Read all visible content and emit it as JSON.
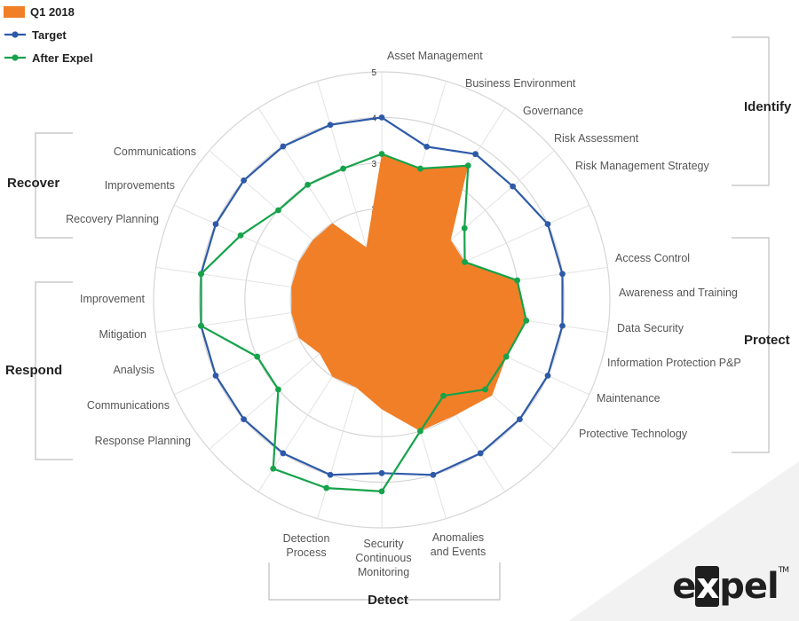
{
  "chart_data": {
    "type": "radar",
    "title": "",
    "rmax": 5,
    "radial_ticks": [
      "0",
      "1",
      "2",
      "3",
      "4",
      "5"
    ],
    "categories": [
      "Asset Management",
      "Business Environment",
      "Governance",
      "Risk Assessment",
      "Risk Management Strategy",
      "Access Control",
      "Awareness and Training",
      "Data Security",
      "Information Protection P&P",
      "Maintenance",
      "Protective Technology",
      "Anomalies and Events",
      "Security Continuous Monitoring",
      "Detection Process",
      "Response Planning",
      "Communications",
      "Analysis",
      "Mitigation",
      "Improvement",
      "Recovery Planning",
      "Improvements",
      "Communications"
    ],
    "functions": [
      {
        "name": "Identify",
        "start": 0,
        "count": 5
      },
      {
        "name": "Protect",
        "start": 5,
        "count": 6
      },
      {
        "name": "Detect",
        "start": 11,
        "count": 3
      },
      {
        "name": "Respond",
        "start": 14,
        "count": 5
      },
      {
        "name": "Recover",
        "start": 19,
        "count": 3
      }
    ],
    "series": [
      {
        "name": "Q1 2018",
        "style": "area",
        "color": "#f07f27",
        "values": [
          3.2,
          3.0,
          3.5,
          2.0,
          2.0,
          3.0,
          3.2,
          3.0,
          3.2,
          3.0,
          3.0,
          2.4,
          2.0,
          2.0,
          1.8,
          2.0,
          2.0,
          2.0,
          2.0,
          2.0,
          2.0,
          1.2
        ]
      },
      {
        "name": "Target",
        "style": "line",
        "color": "#2e5aa8",
        "values": [
          4.0,
          3.5,
          3.8,
          3.8,
          4.0,
          4.0,
          4.0,
          4.0,
          4.0,
          4.0,
          4.0,
          3.8,
          4.0,
          4.0,
          4.0,
          4.0,
          4.0,
          4.0,
          4.0,
          4.0,
          4.0,
          4.0
        ]
      },
      {
        "name": "After Expel",
        "style": "line",
        "color": "#16a34a",
        "values": [
          3.2,
          3.0,
          3.5,
          2.4,
          2.0,
          3.0,
          3.2,
          3.0,
          3.0,
          2.5,
          3.0,
          4.2,
          4.3,
          4.4,
          3.0,
          3.0,
          4.0,
          4.0,
          3.4,
          3.0,
          3.0,
          3.0
        ]
      }
    ],
    "grid": true,
    "legend_position": "top-left"
  },
  "brand": {
    "pre": "e",
    "x": "x",
    "post": "pel",
    "tm": "TM"
  }
}
